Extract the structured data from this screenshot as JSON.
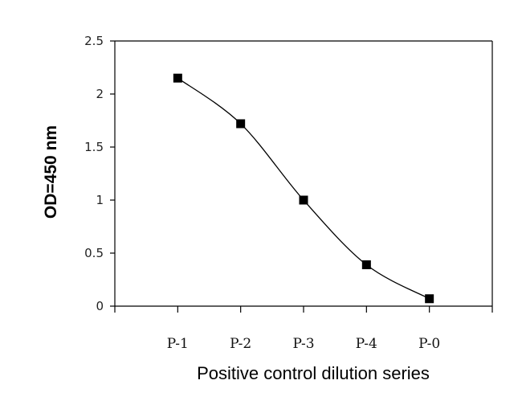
{
  "chart_data": {
    "type": "line",
    "categories": [
      "P-1",
      "P-2",
      "P-3",
      "P-4",
      "P-0"
    ],
    "series": [
      {
        "values": [
          2.15,
          1.72,
          1.0,
          0.39,
          0.07
        ]
      }
    ],
    "xlabel": "Positive control dilution series",
    "ylabel": "OD=450 nm",
    "ylim": [
      0,
      2.5
    ],
    "yticks": [
      "0",
      "0.5",
      "1",
      "1.5",
      "2",
      "2.5"
    ],
    "grid": false,
    "legend": "none",
    "line_color": "#000000",
    "marker": "square",
    "smooth": true
  }
}
